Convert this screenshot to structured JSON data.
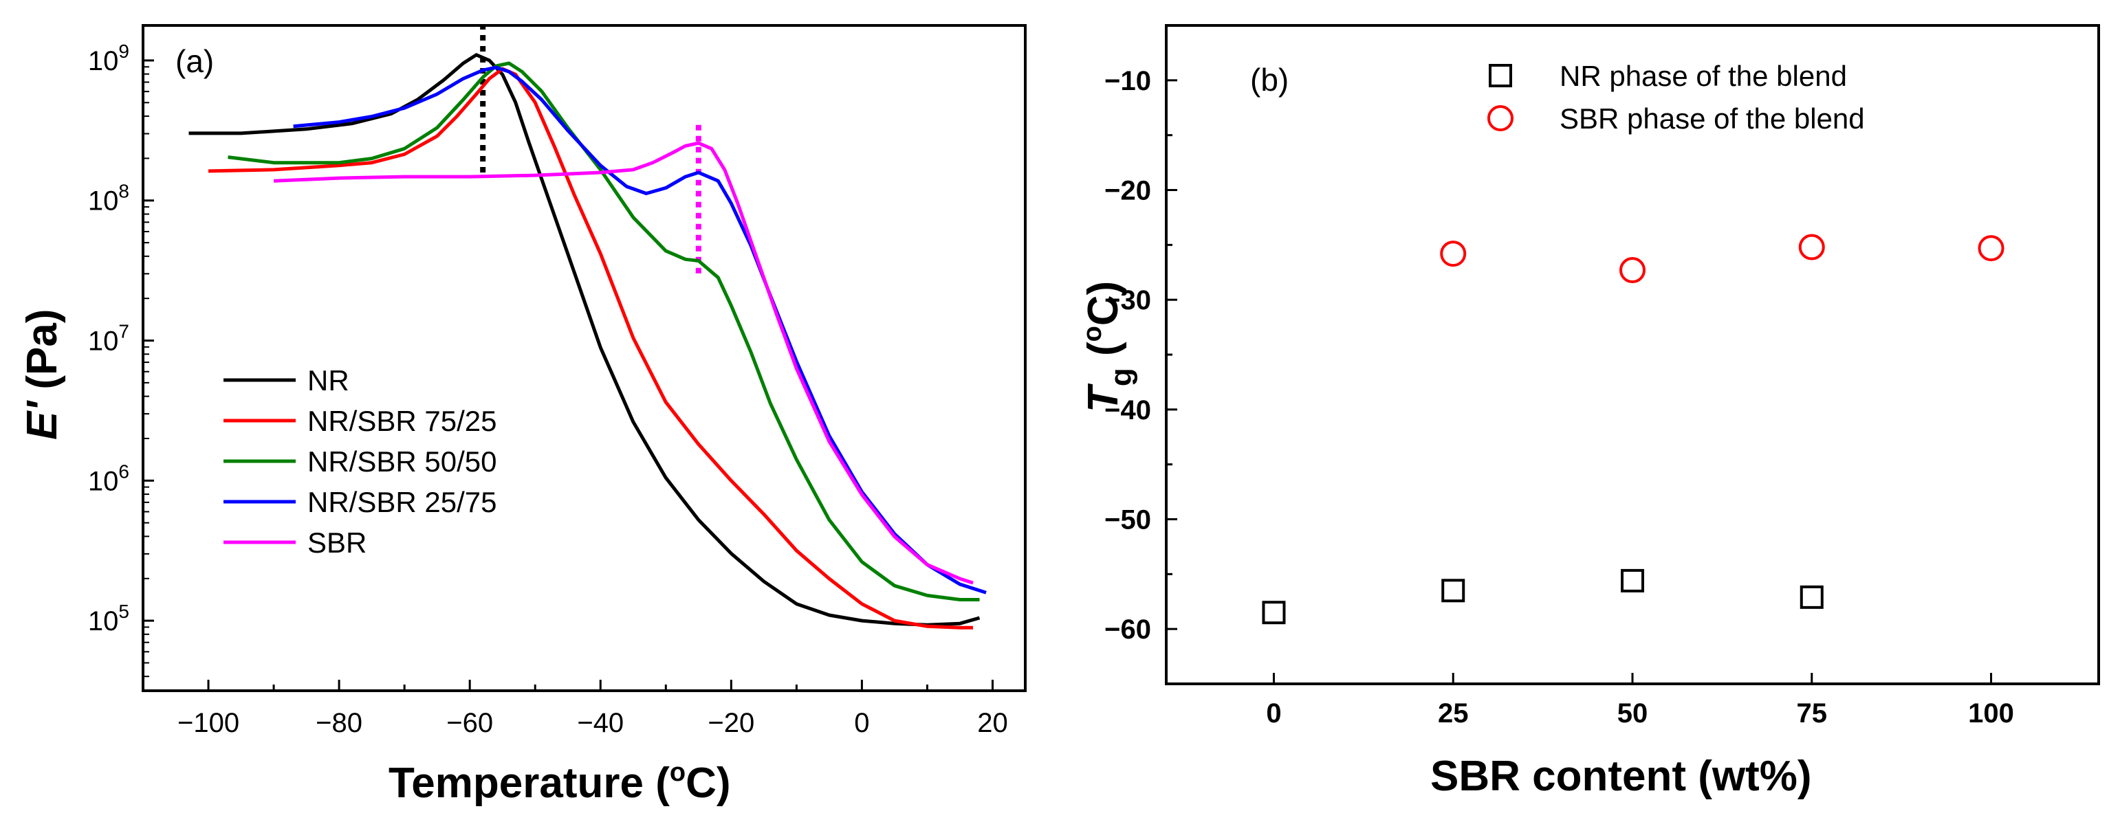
{
  "chart_data": [
    {
      "panel": "(a)",
      "type": "line",
      "xlabel": "Temperature (",
      "xlabel_deg": "o",
      "xlabel_unit": "C)",
      "ylabel": "E' (Pa)",
      "ylabel_symbol": "E'",
      "ylabel_unit": " (Pa)",
      "yscale": "log",
      "xlim": [
        -110,
        25
      ],
      "ylim_log10": [
        4.5,
        9.25
      ],
      "xticks": [
        -100,
        -80,
        -60,
        -40,
        -20,
        0,
        20
      ],
      "xtick_labels": [
        "−100",
        "−80",
        "−60",
        "−40",
        "−20",
        "0",
        "20"
      ],
      "ytick_exponents": [
        5,
        6,
        7,
        8,
        9
      ],
      "ytick_base": "10",
      "ytick_labels": [
        "5",
        "6",
        "7",
        "8",
        "9"
      ],
      "legend_position": "lower-left",
      "vlines": [
        {
          "x": -58,
          "y_from_log10": 8.2,
          "y_to_log10": 9.25,
          "color": "#000000",
          "style": "dotted"
        },
        {
          "x": -25,
          "y_from_log10": 7.48,
          "y_to_log10": 8.55,
          "color": "#ff00ff",
          "style": "dotted"
        }
      ],
      "series": [
        {
          "name": "NR",
          "color": "#000000",
          "x": [
            -103,
            -95,
            -85,
            -78,
            -72,
            -68,
            -64,
            -61,
            -59,
            -57,
            -55,
            -53,
            -51,
            -48,
            -45,
            -40,
            -35,
            -30,
            -25,
            -20,
            -15,
            -10,
            -5,
            0,
            5,
            10,
            15,
            18
          ],
          "y": [
            8.48,
            8.48,
            8.51,
            8.55,
            8.62,
            8.72,
            8.86,
            8.98,
            9.04,
            9.0,
            8.9,
            8.7,
            8.42,
            8.02,
            7.62,
            6.95,
            6.42,
            6.02,
            5.72,
            5.48,
            5.28,
            5.12,
            5.04,
            5.0,
            4.98,
            4.97,
            4.98,
            5.02
          ]
        },
        {
          "name": "NR/SBR 75/25",
          "color": "#ff0000",
          "x": [
            -100,
            -90,
            -80,
            -75,
            -70,
            -65,
            -62,
            -59,
            -57,
            -55,
            -53,
            -50,
            -47,
            -44,
            -40,
            -35,
            -30,
            -25,
            -20,
            -15,
            -10,
            -5,
            0,
            5,
            10,
            15,
            17
          ],
          "y": [
            8.21,
            8.22,
            8.25,
            8.27,
            8.33,
            8.46,
            8.6,
            8.76,
            8.87,
            8.94,
            8.9,
            8.7,
            8.38,
            8.04,
            7.62,
            7.02,
            6.56,
            6.26,
            6.0,
            5.76,
            5.5,
            5.3,
            5.12,
            5.0,
            4.96,
            4.95,
            4.95
          ]
        },
        {
          "name": "NR/SBR 50/50",
          "color": "#008000",
          "x": [
            -97,
            -90,
            -80,
            -75,
            -70,
            -65,
            -61,
            -58,
            -56,
            -54,
            -52,
            -49,
            -45,
            -40,
            -35,
            -30,
            -27,
            -25,
            -22,
            -20,
            -17,
            -14,
            -10,
            -5,
            0,
            5,
            10,
            15,
            18
          ],
          "y": [
            8.31,
            8.27,
            8.27,
            8.3,
            8.37,
            8.52,
            8.72,
            8.88,
            8.96,
            8.98,
            8.92,
            8.78,
            8.52,
            8.22,
            7.88,
            7.64,
            7.58,
            7.57,
            7.45,
            7.25,
            6.92,
            6.55,
            6.15,
            5.72,
            5.42,
            5.25,
            5.18,
            5.15,
            5.15
          ]
        },
        {
          "name": "NR/SBR 25/75",
          "color": "#0000ff",
          "x": [
            -87,
            -80,
            -75,
            -70,
            -65,
            -61,
            -58,
            -56,
            -54,
            -52,
            -49,
            -45,
            -40,
            -36,
            -33,
            -30,
            -27,
            -25,
            -22,
            -20,
            -17,
            -14,
            -10,
            -5,
            0,
            5,
            10,
            15,
            19
          ],
          "y": [
            8.53,
            8.56,
            8.6,
            8.66,
            8.76,
            8.87,
            8.93,
            8.95,
            8.92,
            8.85,
            8.72,
            8.5,
            8.25,
            8.1,
            8.05,
            8.09,
            8.17,
            8.2,
            8.14,
            7.98,
            7.68,
            7.32,
            6.85,
            6.32,
            5.92,
            5.62,
            5.4,
            5.26,
            5.2
          ]
        },
        {
          "name": "SBR",
          "color": "#ff00ff",
          "x": [
            -90,
            -80,
            -70,
            -60,
            -50,
            -40,
            -35,
            -32,
            -29,
            -27,
            -25,
            -23,
            -21,
            -19,
            -16,
            -13,
            -10,
            -5,
            0,
            5,
            10,
            15,
            17
          ],
          "y": [
            8.14,
            8.16,
            8.17,
            8.17,
            8.18,
            8.2,
            8.22,
            8.27,
            8.34,
            8.39,
            8.41,
            8.37,
            8.22,
            7.98,
            7.58,
            7.18,
            6.8,
            6.28,
            5.9,
            5.6,
            5.4,
            5.3,
            5.27
          ]
        }
      ]
    },
    {
      "panel": "(b)",
      "type": "scatter",
      "xlabel": "SBR content (wt%)",
      "ylabel_symbol": "T",
      "ylabel_sub": "g",
      "ylabel_unit": " (",
      "ylabel_deg": "o",
      "ylabel_end": "C)",
      "xlim": [
        -15,
        115
      ],
      "ylim": [
        -65,
        -5
      ],
      "xticks": [
        0,
        25,
        50,
        75,
        100
      ],
      "xtick_labels": [
        "0",
        "25",
        "50",
        "75",
        "100"
      ],
      "yticks": [
        -60,
        -50,
        -40,
        -30,
        -20,
        -10
      ],
      "ytick_labels": [
        "−60",
        "−50",
        "−40",
        "−30",
        "−20",
        "−10"
      ],
      "legend_position": "top-center",
      "series": [
        {
          "name": "NR phase of the blend",
          "marker": "square",
          "color": "#000000",
          "x": [
            0,
            25,
            50,
            75
          ],
          "y": [
            -58.5,
            -56.5,
            -55.6,
            -57.1
          ]
        },
        {
          "name": "SBR phase of the blend",
          "marker": "circle",
          "color": "#ff0000",
          "x": [
            25,
            50,
            75,
            100
          ],
          "y": [
            -25.8,
            -27.3,
            -25.2,
            -25.3
          ]
        }
      ]
    }
  ]
}
